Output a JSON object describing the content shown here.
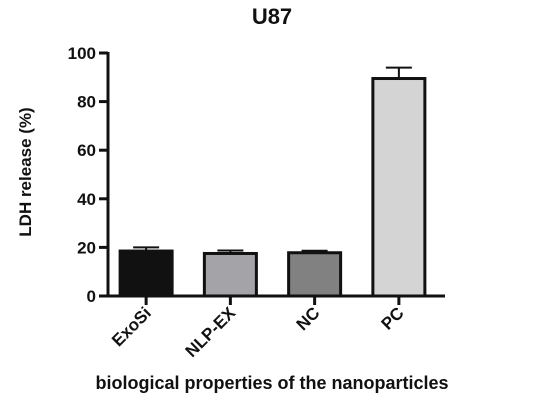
{
  "chart_data": {
    "type": "bar",
    "title": "U87",
    "xlabel": "biological properties of the nanoparticles",
    "ylabel": "LDH release (%)",
    "ylim": [
      0,
      100
    ],
    "yticks": [
      0,
      20,
      40,
      60,
      80,
      100
    ],
    "categories": [
      "ExoSi",
      "NLP-EX",
      "NC",
      "PC"
    ],
    "values": [
      18.5,
      17.5,
      17.8,
      89.5
    ],
    "errors": [
      1.5,
      1.2,
      0.8,
      4.5
    ],
    "bar_colors": [
      "#111111",
      "#a4a4a8",
      "#818181",
      "#d4d4d4"
    ],
    "grid": false
  }
}
